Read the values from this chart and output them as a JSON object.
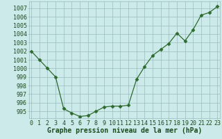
{
  "x": [
    0,
    1,
    2,
    3,
    4,
    5,
    6,
    7,
    8,
    9,
    10,
    11,
    12,
    13,
    14,
    15,
    16,
    17,
    18,
    19,
    20,
    21,
    22,
    23
  ],
  "y": [
    1002.0,
    1001.0,
    1000.0,
    999.0,
    995.3,
    994.8,
    994.4,
    994.5,
    995.0,
    995.5,
    995.6,
    995.6,
    995.7,
    998.7,
    1000.2,
    1001.5,
    1002.2,
    1002.9,
    1004.1,
    1003.2,
    1004.5,
    1006.2,
    1006.5,
    1007.2
  ],
  "line_color": "#2d6a2d",
  "marker": "D",
  "marker_size": 2.5,
  "bg_color": "#cceaea",
  "grid_color": "#99bbbb",
  "xlabel": "Graphe pression niveau de la mer (hPa)",
  "xlabel_color": "#1a4a1a",
  "xlabel_fontsize": 7,
  "tick_color": "#1a4a1a",
  "tick_fontsize": 6,
  "ylim": [
    994.2,
    1007.8
  ],
  "yticks": [
    995,
    996,
    997,
    998,
    999,
    1000,
    1001,
    1002,
    1003,
    1004,
    1005,
    1006,
    1007
  ],
  "xlim": [
    -0.3,
    23.3
  ],
  "xticks": [
    0,
    1,
    2,
    3,
    4,
    5,
    6,
    7,
    8,
    9,
    10,
    11,
    12,
    13,
    14,
    15,
    16,
    17,
    18,
    19,
    20,
    21,
    22,
    23
  ]
}
